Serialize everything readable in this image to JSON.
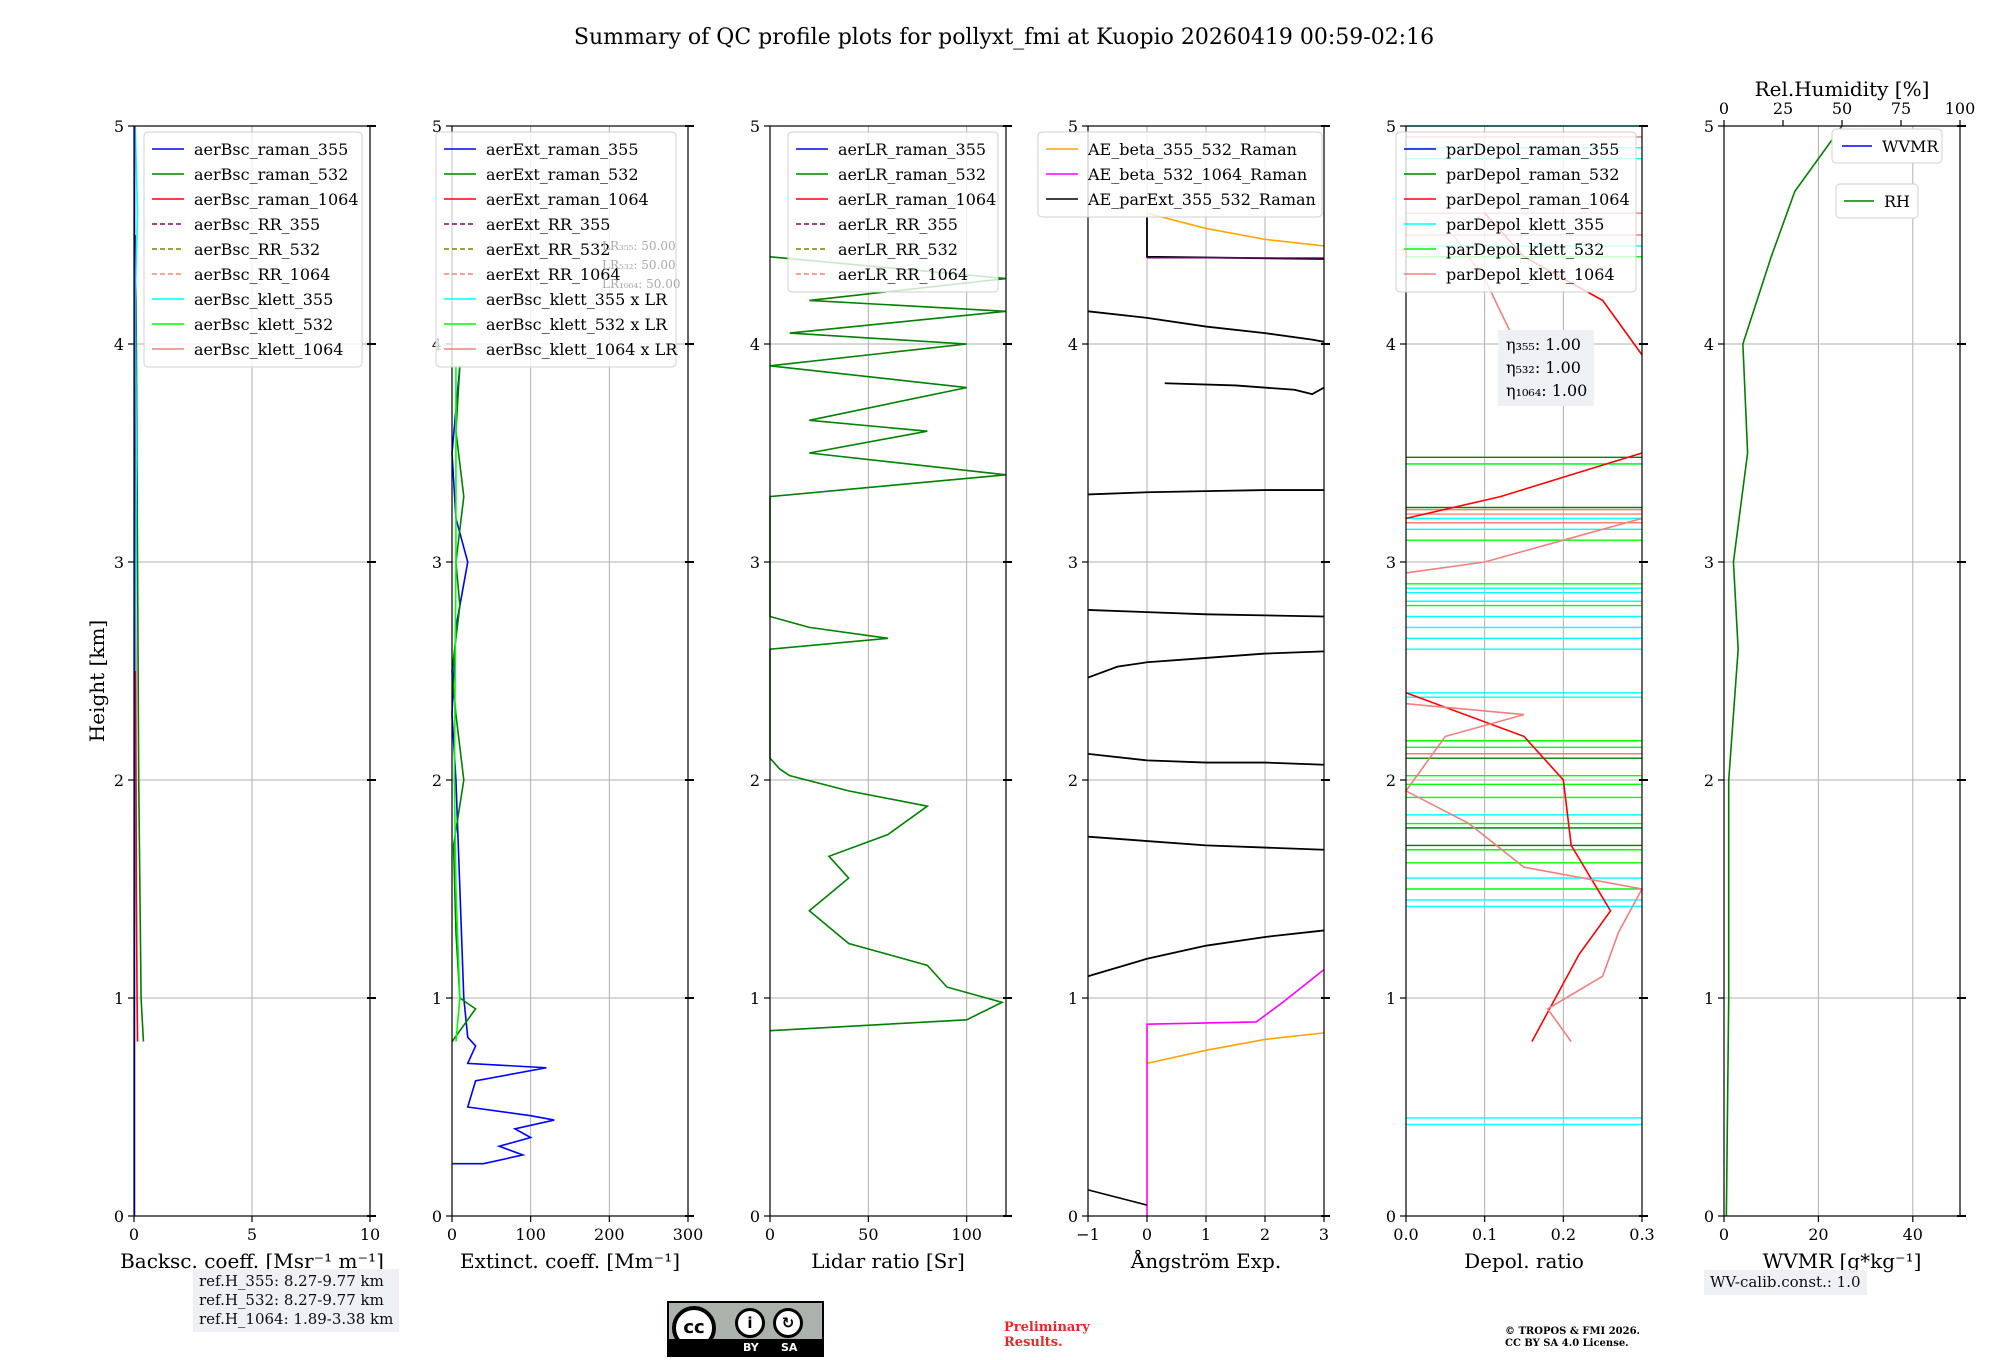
{
  "title": "Summary of QC profile plots for pollyxt_fmi at Kuopio 20260419 00:59-02:16",
  "ylabel": "Height [km]",
  "ref_heights": [
    "ref.H_355: 8.27-9.77 km",
    "ref.H_532: 8.27-9.77 km",
    "ref.H_1064: 1.89-3.38 km"
  ],
  "wv_calib": "WV-calib.const.: 1.0",
  "license_badge": {
    "by": "BY",
    "sa": "SA"
  },
  "preliminary": [
    "Preliminary",
    "Results."
  ],
  "copyright": [
    "© TROPOS & FMI 2026.",
    "CC BY SA 4.0 License."
  ],
  "colors": {
    "blue": "#0000ff",
    "green": "#008000",
    "red": "#ff0000",
    "purple": "#800080",
    "olive": "#808000",
    "salmon": "#fa8072",
    "cyan": "#00ffff",
    "lime": "#00ff00",
    "lightcoral": "#f08080",
    "orange": "#ffa500",
    "magenta": "#ff00ff",
    "black": "#000000"
  },
  "chart_data": [
    {
      "type": "line",
      "id": "backscatter",
      "xlabel": "Backsc. coeff. [Msr⁻¹ m⁻¹]",
      "ylabel": "Height [km]",
      "xlim": [
        0,
        10
      ],
      "ylim": [
        0,
        5
      ],
      "xticks": [
        0,
        5,
        10
      ],
      "yticks": [
        0,
        1,
        2,
        3,
        4,
        5
      ],
      "grid": true,
      "legend_location": "top",
      "legend": [
        "aerBsc_raman_355",
        "aerBsc_raman_532",
        "aerBsc_raman_1064",
        "aerBsc_RR_355",
        "aerBsc_RR_532",
        "aerBsc_RR_1064",
        "aerBsc_klett_355",
        "aerBsc_klett_532",
        "aerBsc_klett_1064"
      ],
      "series": [
        {
          "name": "aerBsc_raman_532",
          "color": "green",
          "points": [
            [
              0.4,
              0.8
            ],
            [
              0.3,
              1.0
            ],
            [
              0.25,
              1.5
            ],
            [
              0.2,
              2.0
            ],
            [
              0.15,
              3.0
            ],
            [
              0.1,
              4.0
            ],
            [
              0.05,
              4.5
            ]
          ]
        },
        {
          "name": "aerBsc_raman_1064",
          "color": "red",
          "points": [
            [
              0.15,
              0.8
            ],
            [
              0.13,
              1.0
            ],
            [
              0.1,
              1.5
            ],
            [
              0.07,
              2.5
            ],
            [
              0.05,
              3.5
            ],
            [
              0.03,
              4.5
            ]
          ]
        },
        {
          "name": "aerBsc_klett_355",
          "color": "cyan",
          "points": [
            [
              0.05,
              2.5
            ],
            [
              0.1,
              3.5
            ],
            [
              0.05,
              4.2
            ],
            [
              0.15,
              4.6
            ],
            [
              0.05,
              5.0
            ]
          ]
        },
        {
          "name": "aerBsc_raman_355",
          "color": "blue",
          "points": [
            [
              0.02,
              0.0
            ],
            [
              0.02,
              5.0
            ]
          ]
        }
      ]
    },
    {
      "type": "line",
      "id": "extinction",
      "xlabel": "Extinct. coeff. [Mm⁻¹]",
      "xlim": [
        0,
        300
      ],
      "ylim": [
        0,
        5
      ],
      "xticks": [
        0,
        100,
        200,
        300
      ],
      "yticks": [
        0,
        1,
        2,
        3,
        4,
        5
      ],
      "grid": true,
      "legend": [
        "aerExt_raman_355",
        "aerExt_raman_532",
        "aerExt_raman_1064",
        "aerExt_RR_355",
        "aerExt_RR_532",
        "aerExt_RR_1064",
        "aerBsc_klett_355 x LR",
        "aerBsc_klett_532 x LR",
        "aerBsc_klett_1064 x LR"
      ],
      "lidar_ratio_labels": [
        "LR₃₅₅: 50.00",
        "LR₅₃₂: 50.00",
        "LR₁₀₆₄: 50.00"
      ],
      "series": [
        {
          "name": "aerExt_raman_355",
          "color": "blue",
          "points": [
            [
              0,
              0.24
            ],
            [
              40,
              0.24
            ],
            [
              90,
              0.28
            ],
            [
              60,
              0.32
            ],
            [
              100,
              0.36
            ],
            [
              80,
              0.4
            ],
            [
              130,
              0.44
            ],
            [
              100,
              0.46
            ],
            [
              20,
              0.5
            ],
            [
              30,
              0.62
            ],
            [
              120,
              0.68
            ],
            [
              20,
              0.7
            ],
            [
              30,
              0.78
            ],
            [
              20,
              0.82
            ],
            [
              15,
              1.0
            ],
            [
              10,
              1.5
            ],
            [
              5,
              2.0
            ],
            [
              0,
              2.3
            ],
            [
              5,
              2.7
            ],
            [
              20,
              3.0
            ],
            [
              5,
              3.2
            ],
            [
              0,
              3.5
            ],
            [
              10,
              3.9
            ]
          ]
        },
        {
          "name": "aerExt_raman_532",
          "color": "green",
          "points": [
            [
              0,
              0.8
            ],
            [
              30,
              0.95
            ],
            [
              10,
              1.0
            ],
            [
              5,
              1.3
            ],
            [
              2,
              1.7
            ],
            [
              15,
              2.0
            ],
            [
              5,
              2.3
            ],
            [
              0,
              2.5
            ],
            [
              10,
              2.8
            ],
            [
              5,
              3.0
            ],
            [
              15,
              3.3
            ],
            [
              5,
              3.6
            ],
            [
              10,
              3.9
            ]
          ]
        },
        {
          "name": "aerBsc_klett_532 x LR",
          "color": "lime",
          "points": [
            [
              5,
              0.8
            ],
            [
              10,
              1.0
            ],
            [
              5,
              1.5
            ],
            [
              3,
              2.0
            ],
            [
              5,
              3.0
            ],
            [
              5,
              3.9
            ]
          ]
        }
      ]
    },
    {
      "type": "line",
      "id": "lidar_ratio",
      "xlabel": "Lidar ratio [Sr]",
      "xlim": [
        0,
        120
      ],
      "ylim": [
        0,
        5
      ],
      "xticks": [
        0,
        50,
        100
      ],
      "yticks": [
        0,
        1,
        2,
        3,
        4,
        5
      ],
      "grid": true,
      "legend": [
        "aerLR_raman_355",
        "aerLR_raman_532",
        "aerLR_raman_1064",
        "aerLR_RR_355",
        "aerLR_RR_532",
        "aerLR_RR_1064"
      ],
      "series": [
        {
          "name": "aerLR_raman_532",
          "color": "green",
          "points": [
            [
              0,
              0.85
            ],
            [
              100,
              0.9
            ],
            [
              118,
              0.98
            ],
            [
              90,
              1.05
            ],
            [
              80,
              1.15
            ],
            [
              40,
              1.25
            ],
            [
              20,
              1.4
            ],
            [
              40,
              1.55
            ],
            [
              30,
              1.65
            ],
            [
              60,
              1.75
            ],
            [
              80,
              1.88
            ],
            [
              40,
              1.95
            ],
            [
              10,
              2.02
            ],
            [
              5,
              2.05
            ],
            [
              0,
              2.1
            ],
            [
              0,
              2.6
            ],
            [
              60,
              2.65
            ],
            [
              20,
              2.7
            ],
            [
              0,
              2.75
            ],
            [
              0,
              3.3
            ],
            [
              60,
              3.35
            ],
            [
              120,
              3.4
            ],
            [
              20,
              3.5
            ],
            [
              80,
              3.6
            ],
            [
              20,
              3.65
            ],
            [
              100,
              3.8
            ],
            [
              0,
              3.9
            ],
            [
              100,
              4.0
            ],
            [
              10,
              4.05
            ],
            [
              120,
              4.15
            ],
            [
              20,
              4.2
            ],
            [
              120,
              4.3
            ],
            [
              0,
              4.4
            ]
          ]
        }
      ]
    },
    {
      "type": "line",
      "id": "angstrom",
      "xlabel": "Ångström Exp.",
      "xlim": [
        -1,
        3
      ],
      "ylim": [
        0,
        5
      ],
      "xticks": [
        -1,
        0,
        1,
        2,
        3
      ],
      "yticks": [
        0,
        1,
        2,
        3,
        4,
        5
      ],
      "grid": true,
      "legend": [
        "AE_beta_355_532_Raman",
        "AE_beta_532_1064_Raman",
        "AE_parExt_355_532_Raman"
      ],
      "series": [
        {
          "name": "AE_beta_355_532_Raman",
          "color": "orange",
          "points": [
            [
              0,
              0.7
            ],
            [
              1,
              0.76
            ],
            [
              2,
              0.81
            ],
            [
              3,
              0.84
            ]
          ],
          "points2": [
            [
              0,
              4.6
            ],
            [
              1,
              4.53
            ],
            [
              2,
              4.48
            ],
            [
              3,
              4.45
            ]
          ]
        },
        {
          "name": "AE_beta_532_1064_Raman",
          "color": "magenta",
          "points": [
            [
              0,
              0
            ],
            [
              0,
              0.88
            ],
            [
              1.85,
              0.89
            ],
            [
              2.3,
              0.98
            ],
            [
              3,
              1.13
            ]
          ]
        },
        {
          "name": "AE_parExt_355_532_Raman",
          "color": "black",
          "points": [
            [
              -1,
              0.12
            ],
            [
              0,
              0.05
            ]
          ]
        }
      ]
    },
    {
      "type": "line",
      "id": "depol",
      "xlabel": "Depol. ratio",
      "xlim": [
        0,
        0.3
      ],
      "ylim": [
        0,
        5
      ],
      "xticks": [
        0.0,
        0.1,
        0.2,
        0.3
      ],
      "yticks": [
        0,
        1,
        2,
        3,
        4,
        5
      ],
      "grid": true,
      "legend": [
        "parDepol_raman_355",
        "parDepol_raman_532",
        "parDepol_raman_1064",
        "parDepol_klett_355",
        "parDepol_klett_532",
        "parDepol_klett_1064"
      ],
      "eta_labels": [
        "η₃₅₅: 1.00",
        "η₅₃₂: 1.00",
        "η₁₀₆₄: 1.00"
      ],
      "series": [
        {
          "name": "parDepol_raman_1064",
          "color": "red",
          "points": [
            [
              0.16,
              0.8
            ],
            [
              0.19,
              1.0
            ],
            [
              0.22,
              1.2
            ],
            [
              0.26,
              1.4
            ],
            [
              0.21,
              1.7
            ],
            [
              0.2,
              2.0
            ],
            [
              0.15,
              2.2
            ],
            [
              0.0,
              2.4
            ]
          ]
        },
        {
          "name": "parDepol_raman_1064_upper",
          "color": "red",
          "points": [
            [
              0.0,
              3.2
            ],
            [
              0.12,
              3.3
            ],
            [
              0.3,
              3.5
            ]
          ]
        },
        {
          "name": "parDepol_raman_1064_top",
          "color": "red",
          "points": [
            [
              0.3,
              3.95
            ],
            [
              0.25,
              4.2
            ],
            [
              0.15,
              4.4
            ],
            [
              0.1,
              4.6
            ]
          ]
        },
        {
          "name": "parDepol_klett_1064",
          "color": "lightcoral",
          "points": [
            [
              0.21,
              0.8
            ],
            [
              0.18,
              0.95
            ],
            [
              0.25,
              1.1
            ],
            [
              0.27,
              1.3
            ],
            [
              0.3,
              1.5
            ],
            [
              0.15,
              1.6
            ],
            [
              0.08,
              1.8
            ],
            [
              0.0,
              1.95
            ],
            [
              0.05,
              2.2
            ],
            [
              0.15,
              2.3
            ],
            [
              0.0,
              2.35
            ]
          ]
        },
        {
          "name": "parDepol_klett_1064_upper",
          "color": "lightcoral",
          "points": [
            [
              0.0,
              2.95
            ],
            [
              0.1,
              3.0
            ],
            [
              0.2,
              3.1
            ],
            [
              0.3,
              3.2
            ]
          ]
        },
        {
          "name": "parDepol_klett_1064_top",
          "color": "lightcoral",
          "points": [
            [
              0.14,
              4.0
            ],
            [
              0.1,
              4.3
            ],
            [
              0.06,
              4.5
            ]
          ]
        }
      ]
    },
    {
      "type": "line",
      "id": "wvmr",
      "xlabel": "WVMR [g*kg⁻¹]",
      "xlabel_top": "Rel.Humidity [%]",
      "xlim": [
        0,
        50
      ],
      "xlim_top": [
        0,
        100
      ],
      "ylim": [
        0,
        5
      ],
      "xticks": [
        0,
        20,
        40
      ],
      "xticks_top": [
        0,
        25,
        50,
        75,
        100
      ],
      "yticks": [
        0,
        1,
        2,
        3,
        4,
        5
      ],
      "grid": true,
      "legend": [
        "WVMR"
      ],
      "legend2": [
        "RH"
      ],
      "series": [
        {
          "name": "RH",
          "color": "green",
          "axis": "top",
          "points": [
            [
              1,
              0
            ],
            [
              2,
              1.0
            ],
            [
              2,
              2.0
            ],
            [
              6,
              2.6
            ],
            [
              4,
              3.0
            ],
            [
              10,
              3.5
            ],
            [
              8,
              4.0
            ],
            [
              20,
              4.4
            ],
            [
              30,
              4.7
            ],
            [
              50,
              5.0
            ]
          ]
        }
      ]
    }
  ]
}
